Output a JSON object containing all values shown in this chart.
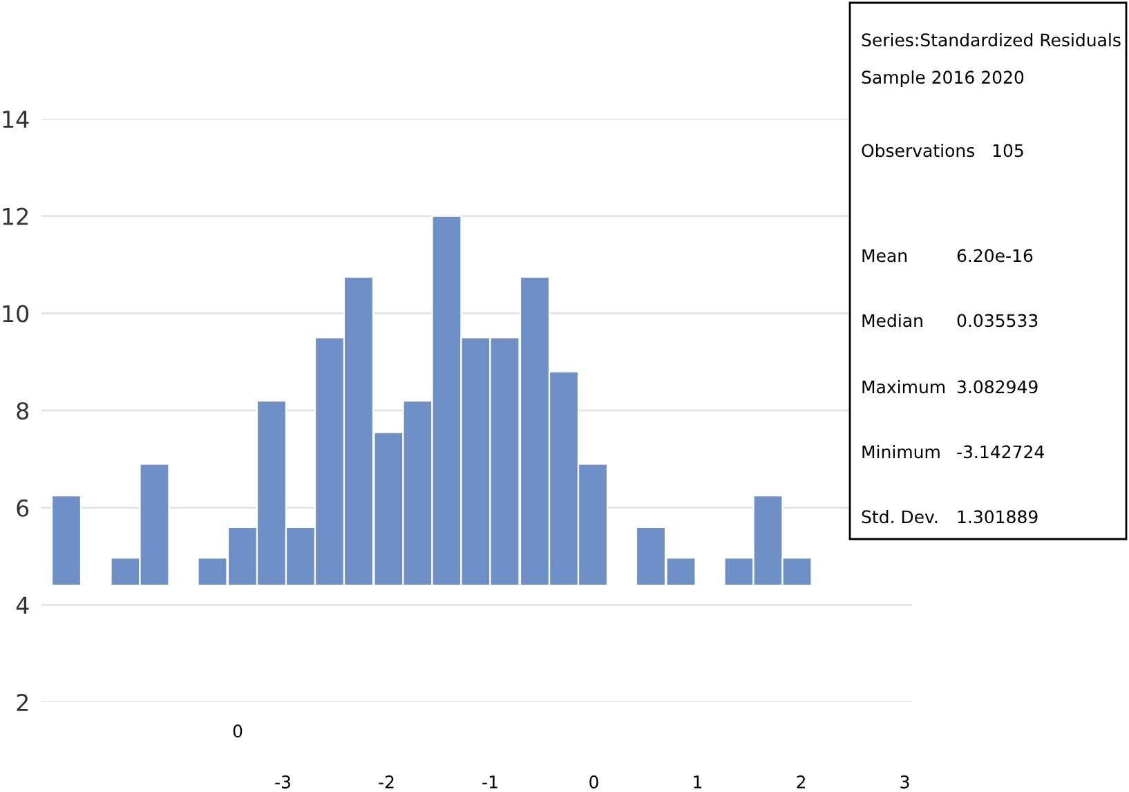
{
  "chart_data": {
    "type": "bar",
    "x": [
      -5.09,
      -4.8,
      -4.52,
      -4.24,
      -3.96,
      -3.68,
      -3.39,
      -3.11,
      -2.83,
      -2.55,
      -2.27,
      -1.98,
      -1.7,
      -1.42,
      -1.14,
      -0.86,
      -0.57,
      -0.29,
      -0.01,
      0.27,
      0.55,
      0.84,
      1.12,
      1.4,
      1.68,
      1.96
    ],
    "values": [
      1.85,
      null,
      0.57,
      2.5,
      null,
      0.57,
      1.2,
      3.8,
      1.2,
      5.1,
      6.35,
      3.15,
      3.8,
      7.6,
      5.1,
      5.1,
      6.35,
      4.4,
      2.5,
      null,
      1.2,
      0.57,
      null,
      0.57,
      1.85,
      0.57
    ],
    "base": [
      4.4,
      null,
      4.4,
      4.4,
      null,
      4.4,
      4.4,
      4.4,
      4.4,
      4.4,
      4.4,
      4.4,
      4.4,
      4.4,
      4.4,
      4.4,
      4.4,
      4.4,
      4.4,
      null,
      4.4,
      4.4,
      null,
      4.4,
      4.4,
      4.4
    ],
    "color": "#6f8fc7",
    "xlim": [
      -5.33,
      3.07
    ],
    "xticks": [
      -3,
      -2,
      -1,
      0,
      1,
      2,
      3
    ],
    "ylim": [
      2,
      14
    ],
    "yticks": [
      2,
      4,
      6,
      8,
      10,
      12,
      14
    ],
    "grid": "y",
    "annotations": [
      "Series:Standardized Residuals",
      "Sample 2016 2020",
      "Observations   105",
      "Mean 6.20e-16",
      "Median 0.035533",
      "Maximum 3.082949",
      "Minimum -3.142724",
      "Std. Dev. 1.301889",
      "0"
    ]
  }
}
